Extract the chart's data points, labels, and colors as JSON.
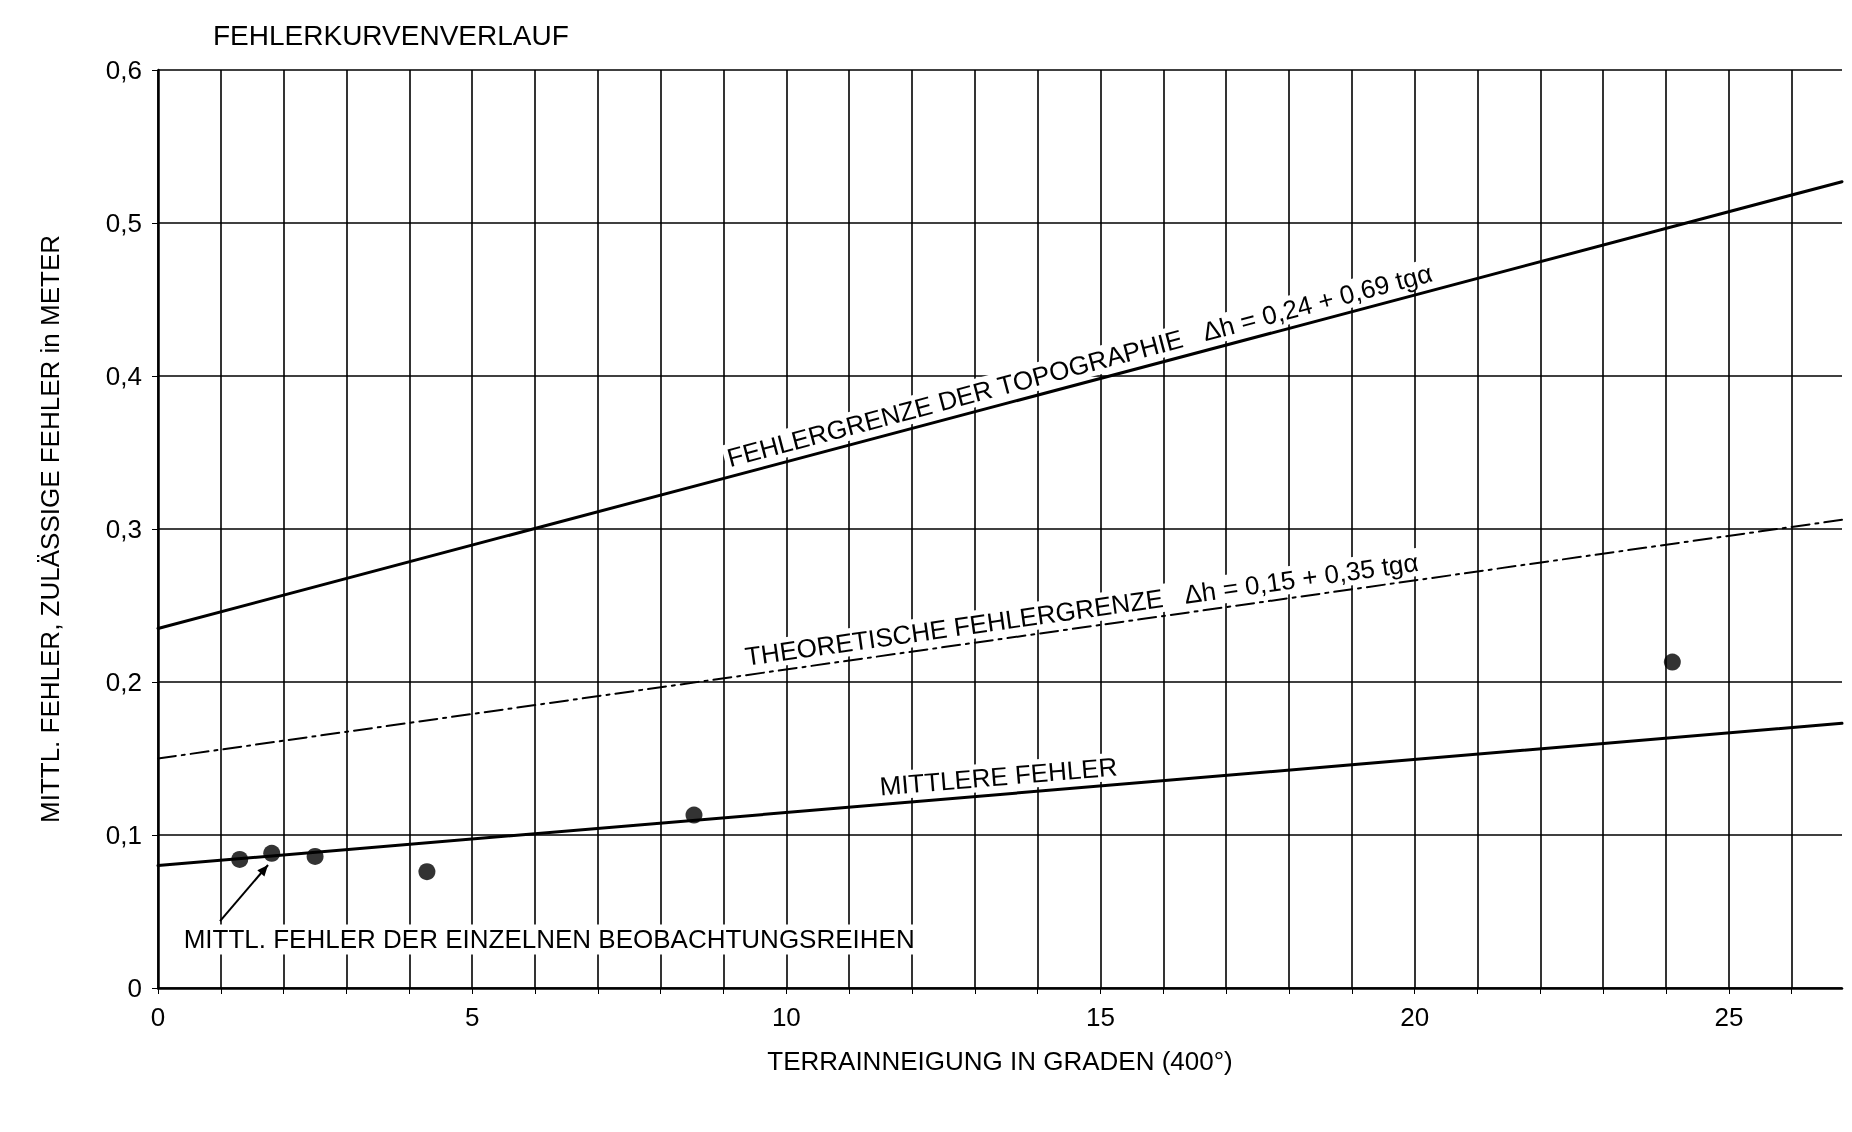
{
  "chart_data": {
    "type": "line",
    "title": "FEHLERKURVENVERLAUF",
    "xlabel": "TERRAINNEIGUNG IN GRADEN (400°)",
    "ylabel": "MITTL. FEHLER, ZULÄSSIGE FEHLER in METER",
    "xlim": [
      0,
      26.8
    ],
    "ylim": [
      0,
      0.6
    ],
    "xticks": [
      0,
      {
        "value": 1,
        "label": null
      },
      {
        "value": 2,
        "label": null
      },
      {
        "value": 3,
        "label": null
      },
      {
        "value": 4,
        "label": null
      },
      5,
      {
        "value": 6,
        "label": null
      },
      {
        "value": 7,
        "label": null
      },
      {
        "value": 8,
        "label": null
      },
      {
        "value": 9,
        "label": null
      },
      10,
      {
        "value": 11,
        "label": null
      },
      {
        "value": 12,
        "label": null
      },
      {
        "value": 13,
        "label": null
      },
      {
        "value": 14,
        "label": null
      },
      15,
      {
        "value": 16,
        "label": null
      },
      {
        "value": 17,
        "label": null
      },
      {
        "value": 18,
        "label": null
      },
      {
        "value": 19,
        "label": null
      },
      20,
      {
        "value": 21,
        "label": null
      },
      {
        "value": 22,
        "label": null
      },
      {
        "value": 23,
        "label": null
      },
      {
        "value": 24,
        "label": null
      },
      25,
      {
        "value": 26,
        "label": null
      }
    ],
    "yticks": [
      0,
      {
        "value": 0.1,
        "label": "0,1"
      },
      {
        "value": 0.2,
        "label": "0,2"
      },
      {
        "value": 0.3,
        "label": "0,3"
      },
      {
        "value": 0.4,
        "label": "0,4"
      },
      {
        "value": 0.5,
        "label": "0,5"
      },
      {
        "value": 0.6,
        "label": "0,6"
      }
    ],
    "grid": true,
    "series": [
      {
        "name": "FEHLERGRENZE DER TOPOGRAPHIE   Δh = 0,24 + 0,69 tgα",
        "color": "#000000",
        "line_style": "solid",
        "x": [
          0,
          26.8
        ],
        "values": [
          0.235,
          0.527
        ]
      },
      {
        "name": "THEORETISCHE FEHLERGRENZE   Δh = 0,15 + 0,35 tgα",
        "color": "#000000",
        "line_style": "dashed",
        "x": [
          0,
          26.8
        ],
        "values": [
          0.15,
          0.306
        ]
      },
      {
        "name": "MITTLERE FEHLER",
        "color": "#000000",
        "line_style": "solid",
        "x": [
          0,
          26.8
        ],
        "values": [
          0.08,
          0.173
        ]
      },
      {
        "name": "MITTL. FEHLER DER EINZELNEN BEOBACHTUNGSREIHEN",
        "type": "scatter",
        "color": "#000000",
        "marker": "circle",
        "x": [
          1.3,
          1.81,
          2.5,
          4.28,
          8.53,
          24.1
        ],
        "values": [
          0.084,
          0.088,
          0.086,
          0.076,
          0.113,
          0.213
        ]
      }
    ]
  }
}
